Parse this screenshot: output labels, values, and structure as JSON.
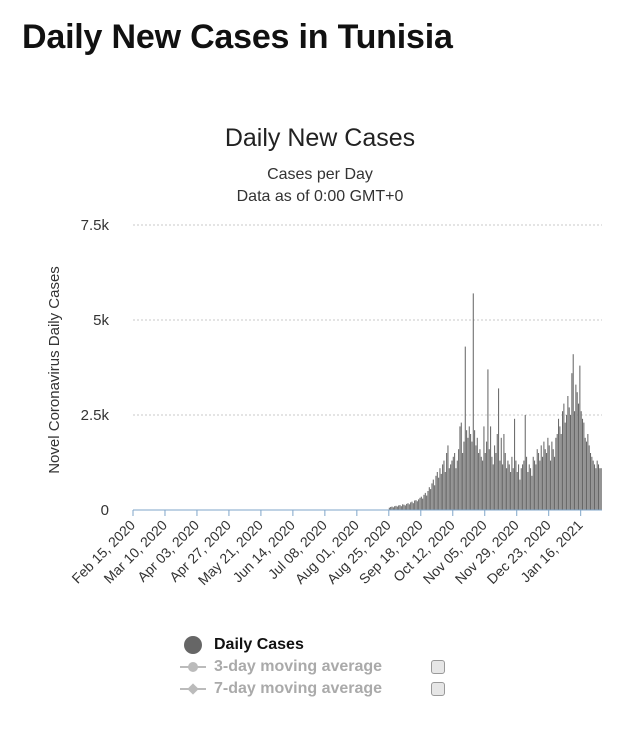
{
  "page": {
    "title": "Daily New Cases in Tunisia"
  },
  "chart_data": {
    "type": "bar",
    "title": "Daily New Cases",
    "subtitle": "Cases per Day",
    "subtitle2": "Data as of 0:00 GMT+0",
    "ylabel": "Novel Coronavirus Daily Cases",
    "xlabel": "",
    "ylim": [
      0,
      7500
    ],
    "yticks": [
      0,
      2500,
      5000,
      7500
    ],
    "ytick_labels": [
      "0",
      "2.5k",
      "5k",
      "7.5k"
    ],
    "grid": true,
    "start_date": "2020-02-15",
    "end_date": "2021-01-31",
    "x_tick_labels": [
      "Feb 15, 2020",
      "Mar 10, 2020",
      "Apr 03, 2020",
      "Apr 27, 2020",
      "May 21, 2020",
      "Jun 14, 2020",
      "Jul 08, 2020",
      "Aug 01, 2020",
      "Aug 25, 2020",
      "Sep 18, 2020",
      "Oct 12, 2020",
      "Nov 05, 2020",
      "Nov 29, 2020",
      "Dec 23, 2020",
      "Jan 16, 2021"
    ],
    "series": [
      {
        "name": "Daily Cases",
        "color": "#666666",
        "segments": [
          {
            "from": "2020-02-15",
            "values": [
              0,
              0,
              0,
              0,
              0,
              0,
              0,
              0,
              0,
              0,
              0,
              0,
              0,
              0,
              0,
              0,
              0,
              0,
              0,
              0,
              0,
              0,
              0,
              0,
              0,
              0,
              0,
              0,
              0,
              0,
              0,
              0,
              0,
              0,
              0,
              0,
              0,
              0,
              0,
              0,
              0,
              0,
              0,
              0,
              0,
              0,
              0,
              0,
              0,
              0,
              0,
              0,
              0,
              0,
              0,
              0,
              0,
              0,
              0,
              0,
              0,
              0,
              0,
              0,
              0,
              0,
              0,
              0,
              0,
              0,
              0,
              0,
              0,
              0,
              0,
              0,
              0,
              0,
              0,
              0,
              0,
              0,
              0,
              0,
              0,
              0,
              0,
              0,
              0,
              0,
              0,
              0,
              0,
              0,
              0,
              0,
              0,
              0,
              0,
              0,
              0,
              0,
              0,
              0,
              0,
              0,
              0,
              0,
              0,
              0,
              0,
              0,
              0,
              0,
              0,
              0,
              0,
              0,
              0,
              0,
              0,
              0,
              0,
              0,
              0,
              0,
              0,
              0,
              0,
              0,
              0,
              0,
              0,
              0,
              0,
              0,
              0,
              0,
              0,
              0,
              0,
              0,
              0,
              0,
              0,
              0,
              0,
              0,
              0,
              0,
              0,
              0,
              0,
              0,
              0,
              0,
              0,
              0,
              0,
              0,
              0,
              0,
              0,
              0,
              0,
              0,
              0,
              0,
              0,
              0,
              0,
              0,
              0,
              0,
              0,
              0,
              0,
              0,
              0,
              0,
              0,
              0,
              0,
              0,
              0,
              0,
              0,
              0,
              0,
              0,
              0,
              0
            ]
          },
          {
            "from": "2020-08-25",
            "values": [
              60,
              80,
              90,
              70,
              100,
              110,
              90,
              120,
              130,
              100,
              150,
              140,
              120,
              160,
              180,
              150,
              200,
              220,
              180,
              250,
              260,
              230,
              280,
              320,
              350,
              300,
              400,
              450,
              380,
              500
            ]
          },
          {
            "from": "2020-09-24",
            "values": [
              600,
              550,
              700,
              800,
              650,
              900,
              1000,
              850,
              1100,
              950,
              1200,
              1300,
              1000,
              1500,
              1700,
              1100,
              1200,
              1300,
              1400,
              1500,
              1100,
              1300,
              1600,
              2200,
              2300,
              1500,
              1800,
              4300,
              2100,
              1900
            ]
          },
          {
            "from": "2020-10-24",
            "values": [
              2200,
              2000,
              1800,
              5700,
              2100,
              1700,
              1900,
              1500,
              1600,
              1400,
              1300,
              2200,
              1500,
              1800,
              3700,
              1600,
              2200,
              1400,
              1200,
              1700,
              1500,
              2000,
              3200,
              1300,
              1900,
              1200,
              2000,
              1500,
              1100,
              1300
            ]
          },
          {
            "from": "2020-11-23",
            "values": [
              1200,
              1000,
              1400,
              1100,
              2400,
              1300,
              1000,
              1200,
              800,
              1100,
              1200,
              1300,
              2500,
              1400,
              1000,
              1200,
              1100,
              900,
              1400,
              1300,
              1200,
              1600,
              1500,
              1300,
              1700,
              1400,
              1800,
              1600,
              1500,
              1900
            ]
          },
          {
            "from": "2020-12-23",
            "values": [
              1700,
              1300,
              1800,
              1600,
              1400,
              1900,
              2000,
              2400,
              2200,
              2000,
              2600,
              2800,
              2300,
              2500,
              3000,
              2700,
              2500,
              3600,
              4100,
              2600,
              3300,
              3100,
              2800,
              3800,
              2600,
              2400,
              2300,
              1900,
              1800,
              2000,
              1700,
              1500,
              1400,
              1300,
              1200,
              1100,
              1300,
              1200,
              1100,
              1100
            ]
          }
        ]
      },
      {
        "name": "3-day moving average",
        "color": "#bbbbbb",
        "visible": false
      },
      {
        "name": "7-day moving average",
        "color": "#bbbbbb",
        "visible": false
      }
    ]
  },
  "legend": {
    "items": [
      "Daily Cases",
      "3-day moving average",
      "7-day moving average"
    ]
  }
}
